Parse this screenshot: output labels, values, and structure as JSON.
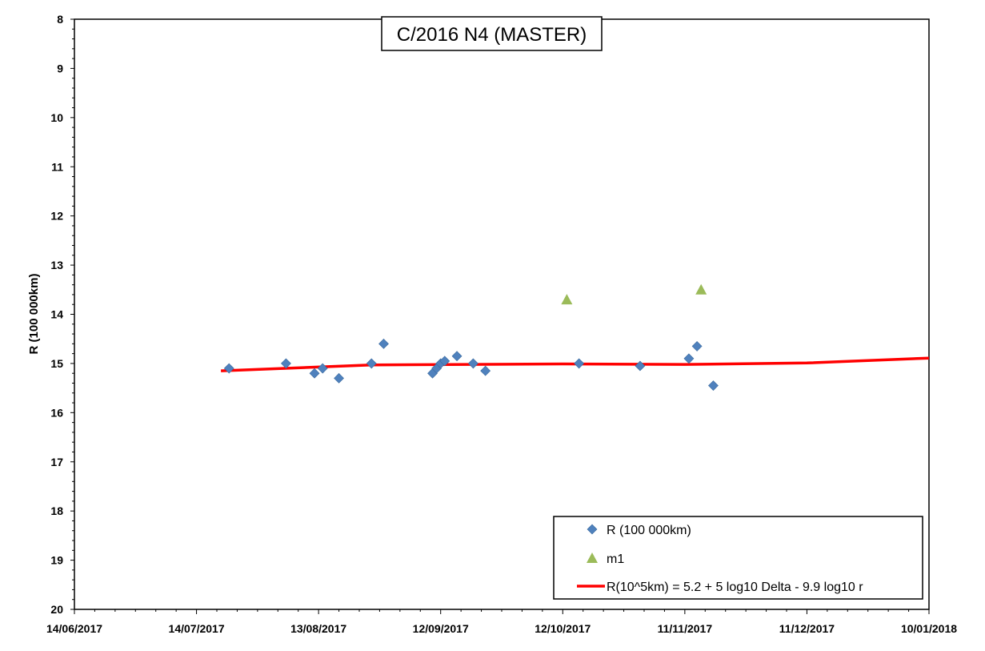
{
  "chart_data": {
    "type": "scatter",
    "title": "C/2016 N4 (MASTER)",
    "xlabel": "",
    "ylabel": "R (100 000km)",
    "x_ticks": [
      "14/06/2017",
      "14/07/2017",
      "13/08/2017",
      "12/09/2017",
      "12/10/2017",
      "11/11/2017",
      "11/12/2017",
      "10/01/2018"
    ],
    "xlim": [
      "14/06/2017",
      "10/01/2018"
    ],
    "ylim": [
      8,
      20
    ],
    "y_reversed": true,
    "y_ticks": [
      "8",
      "9",
      "10",
      "11",
      "12",
      "13",
      "14",
      "15",
      "16",
      "17",
      "18",
      "19",
      "20"
    ],
    "grid": false,
    "legend_position": "bottom-right",
    "series": [
      {
        "name": "R (100 000km)",
        "marker": "diamond",
        "color": "#4F81BD",
        "points": [
          {
            "x": "22/07/2017",
            "y": 15.1
          },
          {
            "x": "05/08/2017",
            "y": 15.0
          },
          {
            "x": "12/08/2017",
            "y": 15.2
          },
          {
            "x": "14/08/2017",
            "y": 15.1
          },
          {
            "x": "18/08/2017",
            "y": 15.3
          },
          {
            "x": "26/08/2017",
            "y": 15.0
          },
          {
            "x": "29/08/2017",
            "y": 14.6
          },
          {
            "x": "10/09/2017",
            "y": 15.2
          },
          {
            "x": "11/09/2017",
            "y": 15.1
          },
          {
            "x": "12/09/2017",
            "y": 15.0
          },
          {
            "x": "13/09/2017",
            "y": 14.95
          },
          {
            "x": "16/09/2017",
            "y": 14.85
          },
          {
            "x": "20/09/2017",
            "y": 15.0
          },
          {
            "x": "23/09/2017",
            "y": 15.15
          },
          {
            "x": "16/10/2017",
            "y": 15.0
          },
          {
            "x": "31/10/2017",
            "y": 15.05
          },
          {
            "x": "12/11/2017",
            "y": 14.9
          },
          {
            "x": "14/11/2017",
            "y": 14.65
          },
          {
            "x": "18/11/2017",
            "y": 15.45
          }
        ]
      },
      {
        "name": "m1",
        "marker": "triangle",
        "color": "#9BBB59",
        "points": [
          {
            "x": "13/10/2017",
            "y": 13.7
          },
          {
            "x": "15/11/2017",
            "y": 13.5
          }
        ]
      },
      {
        "name": "R(10^5km) = 5.2 + 5 log10 Delta - 9.9 log10 r",
        "marker": "line",
        "color": "#FF0000",
        "points": [
          {
            "x": "20/07/2017",
            "y": 15.15
          },
          {
            "x": "26/08/2017",
            "y": 15.03
          },
          {
            "x": "12/10/2017",
            "y": 15.01
          },
          {
            "x": "11/11/2017",
            "y": 15.02
          },
          {
            "x": "11/12/2017",
            "y": 14.99
          },
          {
            "x": "10/01/2018",
            "y": 14.89
          }
        ]
      }
    ]
  }
}
